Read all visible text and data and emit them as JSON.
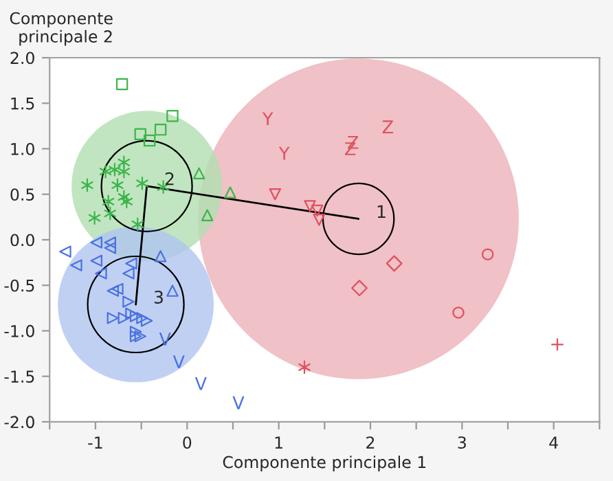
{
  "chart_data": {
    "type": "scatter",
    "xlabel": "Componente principale 1",
    "ylabel": "Componente\nprincipale 2",
    "xlim": [
      -1.5,
      4.5
    ],
    "ylim": [
      -2,
      2
    ],
    "xticks": [
      {
        "value": -1.5,
        "label": null
      },
      -1,
      {
        "value": -0.5,
        "label": null
      },
      0,
      {
        "value": 0.5,
        "label": null
      },
      1,
      {
        "value": 1.5,
        "label": null
      },
      2,
      {
        "value": 2.5,
        "label": null
      },
      3,
      {
        "value": 3.5,
        "label": null
      },
      4,
      {
        "value": 4.5,
        "label": null
      }
    ],
    "yticks": [
      {
        "value": -2,
        "label": "-2.0"
      },
      {
        "value": -1.5,
        "label": "-1.5"
      },
      {
        "value": -1,
        "label": "-1.0"
      },
      {
        "value": -0.5,
        "label": "-0.5"
      },
      {
        "value": 0,
        "label": "0.0"
      },
      {
        "value": 0.5,
        "label": "0.5"
      },
      {
        "value": 1,
        "label": "1.0"
      },
      {
        "value": 1.5,
        "label": "1.5"
      },
      {
        "value": 2,
        "label": "2.0"
      }
    ],
    "grid": false,
    "series": [
      {
        "type": "bubble",
        "x": [
          1.87,
          -0.44,
          -0.56
        ],
        "values": [
          0.23,
          0.59,
          -0.71
        ],
        "sizes": [
          1,
          0.22,
          0.236
        ],
        "colors": [
          "#ecb1b8",
          "#b0dfb0",
          "#b0c4f0"
        ]
      },
      {
        "type": "bubble",
        "x": [
          1.87,
          -0.44,
          -0.56
        ],
        "values": [
          0.23,
          0.59,
          -0.71
        ],
        "sizes": [
          0.049,
          0.08,
          0.09
        ],
        "color": "#000000",
        "line_style": "solid"
      },
      {
        "type": "line",
        "color": "#000000",
        "x": [
          -0.44,
          1.87
        ],
        "values": [
          0.59,
          0.23
        ]
      },
      {
        "type": "line",
        "color": "#000000",
        "x": [
          -0.44,
          -0.56
        ],
        "values": [
          0.59,
          -0.71
        ]
      },
      {
        "marker": "square",
        "color": "#3cb54a",
        "x": [
          -0.71,
          -0.16,
          -0.29,
          -0.51,
          -0.41
        ],
        "values": [
          1.71,
          1.36,
          1.21,
          1.16,
          1.09
        ]
      },
      {
        "marker": "triangle",
        "color": "#3cb54a",
        "x": [
          0.13,
          0.47,
          0.22
        ],
        "values": [
          0.73,
          0.52,
          0.27
        ]
      },
      {
        "marker": "cross",
        "color": "#3cb54a",
        "x": [
          -1.09,
          -0.69,
          -0.79,
          -0.89,
          -0.69,
          -0.76,
          -0.49,
          -0.26,
          -0.69,
          -0.66,
          -0.86,
          -1.01,
          -0.84,
          -0.54
        ],
        "values": [
          0.6,
          0.85,
          0.77,
          0.75,
          0.75,
          0.6,
          0.62,
          0.58,
          0.47,
          0.42,
          0.42,
          0.24,
          0.29,
          0.17
        ]
      },
      {
        "marker": "triangle_left",
        "color": "#4a72e0",
        "x": [
          -1.33,
          -1.21,
          -0.99,
          -0.84,
          -0.84,
          -0.99,
          -0.94,
          -0.64,
          -0.61,
          -0.81,
          -0.76
        ],
        "values": [
          -0.13,
          -0.28,
          -0.03,
          -0.03,
          -0.09,
          -0.23,
          -0.37,
          -0.37,
          -0.26,
          -0.56,
          -0.54
        ]
      },
      {
        "marker": "triangle",
        "color": "#4a72e0",
        "x": [
          -0.29,
          -0.16
        ],
        "values": [
          -0.18,
          -0.56
        ]
      },
      {
        "marker": "triangle_right",
        "color": "#4a72e0",
        "x": [
          -0.64,
          -0.81,
          -0.69,
          -0.61,
          -0.56,
          -0.49,
          -0.44,
          -0.56,
          -0.51,
          -0.56
        ],
        "values": [
          -0.68,
          -0.86,
          -0.86,
          -0.81,
          -0.84,
          -0.86,
          -0.89,
          -1.01,
          -1.06,
          -1.06
        ]
      },
      {
        "color": "#4a72e0",
        "x": [
          -0.24,
          -0.09,
          0.15,
          0.56
        ],
        "values": [
          -1.09,
          -1.34,
          -1.58,
          -1.79
        ]
      },
      {
        "color": "#e0505f",
        "x": [
          0.88,
          1.06
        ],
        "values": [
          1.33,
          0.95
        ]
      },
      {
        "color": "#e0505f",
        "x": [
          2.19,
          1.81,
          1.78
        ],
        "values": [
          1.24,
          1.07,
          1.0
        ]
      },
      {
        "marker": "triangle_down",
        "color": "#e0505f",
        "x": [
          0.96,
          1.34,
          1.42,
          1.44
        ],
        "values": [
          0.5,
          0.37,
          0.32,
          0.22
        ]
      },
      {
        "marker": "diamond",
        "color": "#e0505f",
        "x": [
          2.26,
          1.88
        ],
        "values": [
          -0.26,
          -0.53
        ]
      },
      {
        "marker": "circle",
        "color": "#e0505f",
        "x": [
          3.28,
          2.96
        ],
        "values": [
          -0.16,
          -0.8
        ]
      },
      {
        "marker": "cross",
        "color": "#e0505f",
        "x": [
          1.28
        ],
        "values": [
          -1.4
        ]
      },
      {
        "marker": "plus",
        "color": "#e0505f",
        "x": [
          4.04
        ],
        "values": [
          -1.15
        ]
      }
    ],
    "annotations": [
      "1",
      "2",
      "3"
    ]
  }
}
